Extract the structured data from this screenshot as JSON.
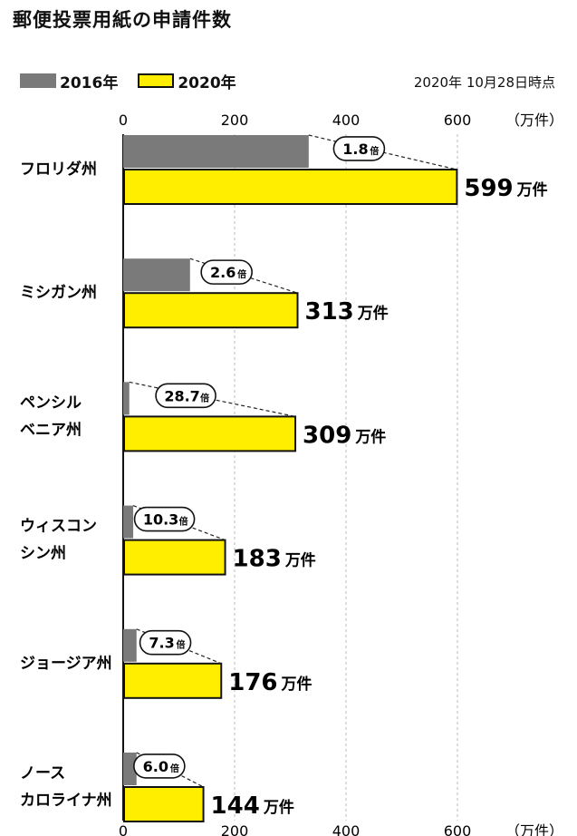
{
  "title": "郵便投票用紙の申請件数",
  "as_of": "2020年 10月28日時点",
  "legend": [
    {
      "label": "2016年",
      "color": "#7a7a7a"
    },
    {
      "label": "2020年",
      "color": "#ffee00"
    }
  ],
  "axis_unit": "（万件）",
  "value_unit": "万件",
  "ratio_unit": "倍",
  "chart_data": {
    "type": "bar",
    "orientation": "horizontal",
    "title": "郵便投票用紙の申請件数",
    "categories": [
      [
        "フロリダ州"
      ],
      [
        "ミシガン州"
      ],
      [
        "ペンシル",
        "ベニア州"
      ],
      [
        "ウィスコン",
        "シン州"
      ],
      [
        "ジョージア州"
      ],
      [
        "ノース",
        "カロライナ州"
      ]
    ],
    "series": [
      {
        "name": "2016年",
        "color": "#7a7a7a",
        "values": [
          333,
          120,
          11,
          18,
          24,
          24
        ]
      },
      {
        "name": "2020年",
        "color": "#ffee00",
        "values": [
          599,
          313,
          309,
          183,
          176,
          144
        ]
      }
    ],
    "ratios": [
      "1.8",
      "2.6",
      "28.7",
      "10.3",
      "7.3",
      "6.0"
    ],
    "xlim": [
      0,
      600
    ],
    "ticks": [
      0,
      200,
      400,
      600
    ],
    "grid": true,
    "legend_position": "top-left"
  }
}
